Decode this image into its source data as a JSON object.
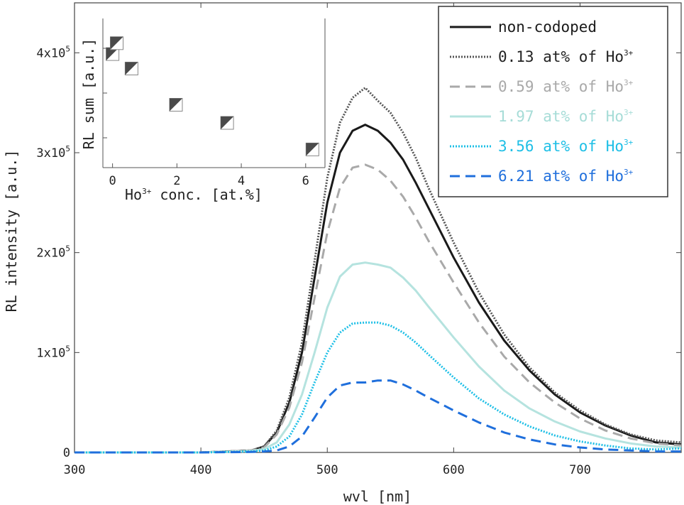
{
  "chart_data": [
    {
      "type": "line",
      "xlabel": "wvl [nm]",
      "ylabel": "RL intensity [a.u.]",
      "xlim": [
        300,
        780
      ],
      "ylim": [
        0,
        450000
      ],
      "xticks": [
        300,
        400,
        500,
        600,
        700
      ],
      "xtick_labels": [
        "300",
        "400",
        "500",
        "600",
        "700"
      ],
      "yticks": [
        0,
        100000,
        200000,
        300000,
        400000
      ],
      "ytick_labels": [
        {
          "base": "0",
          "exp": ""
        },
        {
          "base": "1x10",
          "exp": "5"
        },
        {
          "base": "2x10",
          "exp": "5"
        },
        {
          "base": "3x10",
          "exp": "5"
        },
        {
          "base": "4x10",
          "exp": "5"
        }
      ],
      "x": [
        300,
        400,
        440,
        450,
        460,
        470,
        480,
        490,
        500,
        510,
        520,
        530,
        540,
        550,
        560,
        570,
        580,
        600,
        620,
        640,
        660,
        680,
        700,
        720,
        740,
        760,
        780
      ],
      "series": [
        {
          "name": "non-codoped",
          "line": "solid",
          "color": "#1a1a1a",
          "values": [
            0,
            0,
            2000,
            6000,
            20000,
            50000,
            100000,
            175000,
            250000,
            300000,
            322000,
            328000,
            322000,
            310000,
            293000,
            270000,
            245000,
            195000,
            150000,
            112000,
            82000,
            58000,
            40000,
            27000,
            17000,
            10000,
            8000
          ]
        },
        {
          "name": "0.13 at% of Ho",
          "sup": "3+",
          "line": "dotted",
          "color": "#555555",
          "values": [
            0,
            0,
            2000,
            6000,
            22000,
            55000,
            110000,
            192000,
            275000,
            330000,
            355000,
            365000,
            352000,
            340000,
            320000,
            295000,
            265000,
            210000,
            160000,
            118000,
            85000,
            60000,
            42000,
            28000,
            18000,
            12000,
            10000
          ]
        },
        {
          "name": "0.59 at% of Ho",
          "sup": "3+",
          "line": "dashed",
          "color": "#a9a9a9",
          "values": [
            0,
            0,
            2000,
            5000,
            18000,
            45000,
            90000,
            155000,
            220000,
            265000,
            285000,
            288000,
            283000,
            272000,
            256000,
            235000,
            212000,
            170000,
            130000,
            96000,
            70000,
            50000,
            34000,
            22000,
            14000,
            9000,
            7000
          ]
        },
        {
          "name": "1.97 at% of Ho",
          "sup": "3+",
          "line": "solid",
          "color": "#b5e3df",
          "values": [
            0,
            0,
            1500,
            3500,
            10000,
            28000,
            58000,
            100000,
            145000,
            176000,
            188000,
            190000,
            188000,
            185000,
            175000,
            162000,
            146000,
            115000,
            86000,
            62000,
            44000,
            31000,
            21000,
            14000,
            9000,
            6000,
            5000
          ]
        },
        {
          "name": "3.56 at% of Ho",
          "sup": "3+",
          "line": "dotted",
          "color": "#1ebfe6",
          "values": [
            0,
            0,
            1000,
            2000,
            6000,
            16000,
            38000,
            70000,
            100000,
            120000,
            129000,
            130000,
            130000,
            127000,
            120000,
            110000,
            98000,
            75000,
            54000,
            38000,
            26000,
            17000,
            11000,
            7000,
            4000,
            3000,
            4000
          ]
        },
        {
          "name": "6.21 at% of Ho",
          "sup": "3+",
          "line": "dashed",
          "color": "#1f6fdc",
          "values": [
            0,
            0,
            500,
            1000,
            2000,
            6000,
            16000,
            35000,
            55000,
            67000,
            70000,
            70000,
            72000,
            72000,
            68000,
            62000,
            55000,
            42000,
            30000,
            20000,
            13000,
            8000,
            5000,
            3000,
            2000,
            1000,
            1000
          ]
        }
      ],
      "legend_position": "top-right"
    },
    {
      "type": "scatter",
      "xlabel": "Ho",
      "xlabel_sup": "3+",
      "xlabel_rest": " conc. [at.%]",
      "ylabel": "RL sum [a.u.]",
      "xlim": [
        -0.3,
        6.6
      ],
      "ylim": [
        0,
        1
      ],
      "xticks": [
        0,
        2,
        4,
        6
      ],
      "xtick_labels": [
        "0",
        "2",
        "4",
        "6"
      ],
      "x": [
        0,
        0.13,
        0.59,
        1.97,
        3.56,
        6.21
      ],
      "y": [
        0.87,
        0.96,
        0.75,
        0.45,
        0.3,
        0.08
      ],
      "marker": "half-filled-triangle-square",
      "marker_color": "#4a4a4a"
    }
  ]
}
